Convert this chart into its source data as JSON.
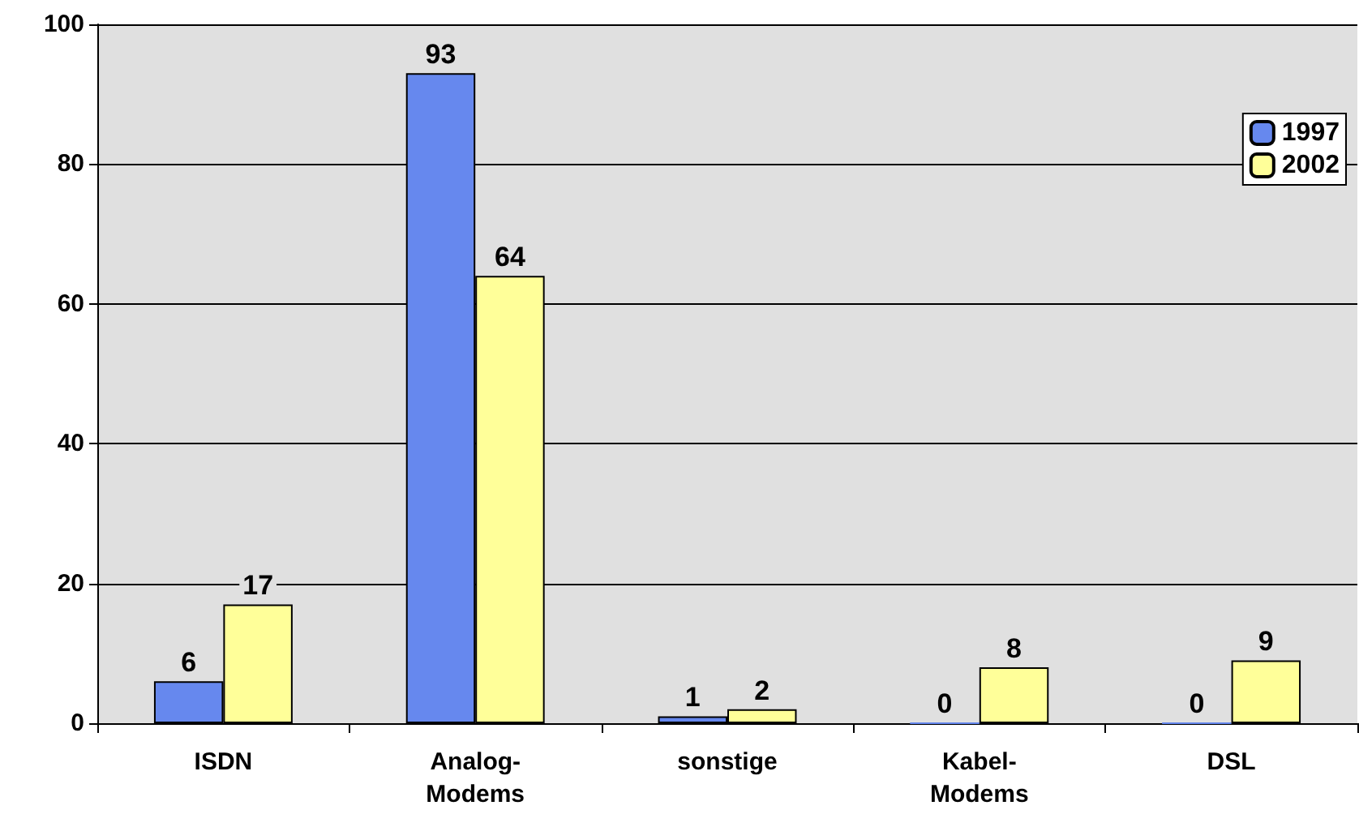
{
  "chart_data": {
    "type": "bar",
    "categories": [
      "ISDN",
      "Analog-Modems",
      "sonstige",
      "Kabel-Modems",
      "DSL"
    ],
    "series": [
      {
        "name": "1997",
        "color": "#6688ee",
        "values": [
          6,
          93,
          1,
          0,
          0
        ]
      },
      {
        "name": "2002",
        "color": "#ffff99",
        "values": [
          17,
          64,
          2,
          8,
          9
        ]
      }
    ],
    "ylim": [
      0,
      100
    ],
    "yticks": [
      0,
      20,
      40,
      60,
      80,
      100
    ],
    "grid": "y",
    "legend": "top right",
    "data_labels": true
  }
}
